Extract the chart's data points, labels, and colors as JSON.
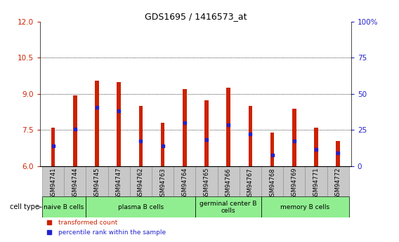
{
  "title": "GDS1695 / 1416573_at",
  "samples": [
    "GSM94741",
    "GSM94744",
    "GSM94745",
    "GSM94747",
    "GSM94762",
    "GSM94763",
    "GSM94764",
    "GSM94765",
    "GSM94766",
    "GSM94767",
    "GSM94768",
    "GSM94769",
    "GSM94771",
    "GSM94772"
  ],
  "transformed_count": [
    7.6,
    8.95,
    9.55,
    9.5,
    8.5,
    7.8,
    9.2,
    8.75,
    9.25,
    8.5,
    7.4,
    8.4,
    7.6,
    7.05
  ],
  "percentile_rank_left": [
    6.85,
    7.55,
    8.45,
    8.3,
    7.05,
    6.85,
    7.8,
    7.1,
    7.72,
    7.35,
    6.45,
    7.05,
    6.7,
    6.55
  ],
  "ylim_left": [
    6,
    12
  ],
  "ylim_right": [
    0,
    100
  ],
  "yticks_left": [
    6,
    7.5,
    9,
    10.5,
    12
  ],
  "yticks_right": [
    0,
    25,
    50,
    75,
    100
  ],
  "groups": [
    {
      "label": "naive B cells",
      "start": 0,
      "end": 1
    },
    {
      "label": "plasma B cells",
      "start": 2,
      "end": 6
    },
    {
      "label": "germinal center B\ncells",
      "start": 7,
      "end": 9
    },
    {
      "label": "memory B cells",
      "start": 10,
      "end": 13
    }
  ],
  "cell_type_label": "cell type",
  "bar_color": "#CC2200",
  "dot_color": "#2222CC",
  "bar_width": 0.18,
  "grid_color": "black",
  "background_color": "white",
  "ylabel_left_color": "#CC2200",
  "ylabel_right_color": "#2222CC",
  "tick_bg_color": "#C8C8C8",
  "cell_bg_color": "#90EE90",
  "legend_items": [
    {
      "label": "transformed count",
      "color": "#CC2200"
    },
    {
      "label": "percentile rank within the sample",
      "color": "#2222CC"
    }
  ]
}
